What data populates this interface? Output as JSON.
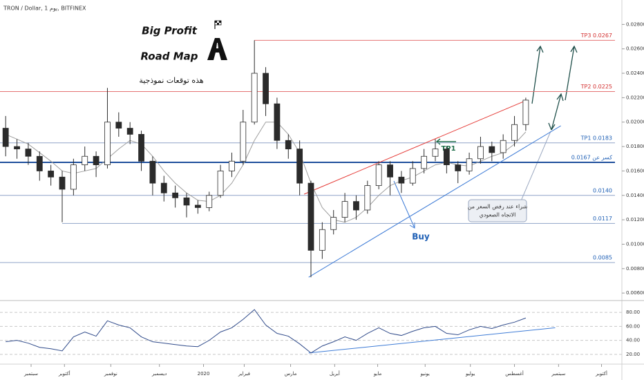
{
  "chart_data": [
    {
      "type": "candlestick",
      "title": "TRON / Dollar, 1 يوم, BITFINEX",
      "xlim": [
        -0.5,
        54.5
      ],
      "ylim": [
        0.0055,
        0.03
      ],
      "yticks": [
        {
          "value": 0.028,
          "label": "0.028000"
        },
        {
          "value": 0.026,
          "label": "0.026000"
        },
        {
          "value": 0.024,
          "label": "0.024000"
        },
        {
          "value": 0.022,
          "label": "0.022000"
        },
        {
          "value": 0.02,
          "label": "0.020000"
        },
        {
          "value": 0.018,
          "label": "0.018000"
        },
        {
          "value": 0.016,
          "label": "0.016000"
        },
        {
          "value": 0.014,
          "label": "0.014000"
        },
        {
          "value": 0.012,
          "label": "0.012000"
        },
        {
          "value": 0.01,
          "label": "0.010000"
        },
        {
          "value": 0.008,
          "label": "0.008000"
        },
        {
          "value": 0.006,
          "label": "0.006000"
        }
      ],
      "up_color": "#ffffff",
      "down_color": "#2b2b2b",
      "wick_color": "#2b2b2b",
      "ma_color": "#9e9e9e",
      "open": [
        0.0195,
        0.018,
        0.0178,
        0.0172,
        0.016,
        0.0155,
        0.0145,
        0.0165,
        0.0172,
        0.0165,
        0.02,
        0.0195,
        0.019,
        0.0168,
        0.015,
        0.0142,
        0.0138,
        0.0132,
        0.013,
        0.014,
        0.016,
        0.0168,
        0.02,
        0.024,
        0.0215,
        0.0185,
        0.0178,
        0.015,
        0.0095,
        0.0112,
        0.0122,
        0.0135,
        0.0128,
        0.0148,
        0.0165,
        0.0155,
        0.015,
        0.0162,
        0.0172,
        0.0178,
        0.0165,
        0.016,
        0.017,
        0.018,
        0.0175,
        0.0185,
        0.0198
      ],
      "high": [
        0.0205,
        0.0186,
        0.0183,
        0.0176,
        0.0165,
        0.016,
        0.017,
        0.018,
        0.0176,
        0.0228,
        0.0208,
        0.02,
        0.0193,
        0.0172,
        0.0156,
        0.0148,
        0.0142,
        0.0136,
        0.0143,
        0.0165,
        0.0175,
        0.021,
        0.0267,
        0.0245,
        0.022,
        0.019,
        0.0185,
        0.0152,
        0.0118,
        0.0128,
        0.0142,
        0.014,
        0.0152,
        0.0168,
        0.0168,
        0.016,
        0.0168,
        0.0178,
        0.0186,
        0.018,
        0.0168,
        0.0175,
        0.0188,
        0.0184,
        0.019,
        0.0205,
        0.022
      ],
      "low": [
        0.0172,
        0.017,
        0.0165,
        0.0152,
        0.0148,
        0.0118,
        0.014,
        0.016,
        0.0155,
        0.0162,
        0.0188,
        0.0182,
        0.016,
        0.014,
        0.0135,
        0.013,
        0.0122,
        0.0125,
        0.0127,
        0.0138,
        0.0155,
        0.0165,
        0.0198,
        0.0205,
        0.0178,
        0.017,
        0.014,
        0.0073,
        0.0088,
        0.0108,
        0.0118,
        0.012,
        0.0125,
        0.0145,
        0.014,
        0.0142,
        0.0148,
        0.0158,
        0.0168,
        0.0158,
        0.015,
        0.0157,
        0.0166,
        0.0168,
        0.017,
        0.018,
        0.0193
      ],
      "close": [
        0.018,
        0.0178,
        0.0172,
        0.016,
        0.0155,
        0.0145,
        0.0165,
        0.0172,
        0.0165,
        0.02,
        0.0195,
        0.019,
        0.0168,
        0.015,
        0.0142,
        0.0138,
        0.0132,
        0.013,
        0.014,
        0.016,
        0.0168,
        0.02,
        0.024,
        0.0215,
        0.0185,
        0.0178,
        0.015,
        0.0095,
        0.0112,
        0.0122,
        0.0135,
        0.0128,
        0.0148,
        0.0165,
        0.0155,
        0.015,
        0.0162,
        0.0172,
        0.0178,
        0.0165,
        0.016,
        0.017,
        0.018,
        0.0175,
        0.0185,
        0.0198,
        0.0218
      ],
      "ma": [
        0.019,
        0.0186,
        0.0182,
        0.0175,
        0.0168,
        0.016,
        0.0158,
        0.016,
        0.0162,
        0.017,
        0.0178,
        0.0185,
        0.0182,
        0.0172,
        0.016,
        0.015,
        0.0142,
        0.0136,
        0.0135,
        0.014,
        0.015,
        0.0165,
        0.0185,
        0.02,
        0.02,
        0.019,
        0.0175,
        0.015,
        0.013,
        0.012,
        0.0118,
        0.0122,
        0.013,
        0.014,
        0.0148,
        0.0152,
        0.0155,
        0.016,
        0.0165,
        0.0167,
        0.0165,
        0.0164,
        0.0168,
        0.0172,
        0.0175,
        0.0182,
        0.0192
      ],
      "levels": [
        {
          "value": 0.0267,
          "label": "TP3 0.0267",
          "color": "#e57373",
          "from": 22,
          "width": 1
        },
        {
          "value": 0.0225,
          "label": "TP2 0.0225",
          "color": "#e57373",
          "from": -0.5,
          "width": 1
        },
        {
          "value": 0.0183,
          "label": "TP1 0.0183",
          "color": "#90a4c8",
          "from": -0.5,
          "width": 1
        },
        {
          "value": 0.0167,
          "label": "كسر عن 0.0167",
          "color": "#1e4f9c",
          "from": -0.5,
          "width": 2
        },
        {
          "value": 0.014,
          "label": "0.0140",
          "color": "#90a4c8",
          "from": -0.5,
          "width": 1
        },
        {
          "value": 0.0117,
          "label": "0.0117",
          "color": "#90a4c8",
          "from": 5,
          "width": 1
        },
        {
          "value": 0.0085,
          "label": "0.0085",
          "color": "#90a4c8",
          "from": -0.5,
          "width": 1
        }
      ],
      "trendlines": [
        {
          "from": [
            26.4,
            0.0141
          ],
          "to": [
            46.1,
            0.0218
          ],
          "color": "#e53935"
        },
        {
          "from": [
            26.8,
            0.0073
          ],
          "to": [
            49.1,
            0.0197
          ],
          "color": "#3d7bd6"
        }
      ],
      "annotations": {
        "headline": "Big Profit",
        "subline": "Road Map",
        "note": "هذه توقعات نموذجية",
        "tp1": "TP1",
        "buy": "Buy",
        "callout": [
          "شراء عند رفض السعر من",
          "الاتجاه الصعودي"
        ]
      }
    },
    {
      "type": "line",
      "color": "#2f4a8a",
      "xlim": [
        -0.5,
        54.5
      ],
      "ylim": [
        8,
        95
      ],
      "xticks": [
        {
          "value": 2.25,
          "label": "سبتمبر"
        },
        {
          "value": 5.2,
          "label": "أكتوبر"
        },
        {
          "value": 9.3,
          "label": "نوفمبر"
        },
        {
          "value": 13.6,
          "label": "ديسمبر"
        },
        {
          "value": 17.5,
          "label": "2020"
        },
        {
          "value": 21.1,
          "label": "فبراير"
        },
        {
          "value": 25.2,
          "label": "مارس"
        },
        {
          "value": 29.1,
          "label": "أبريل"
        },
        {
          "value": 32.9,
          "label": "مايو"
        },
        {
          "value": 37.1,
          "label": "يونيو"
        },
        {
          "value": 41.1,
          "label": "يوليو"
        },
        {
          "value": 45.0,
          "label": "أغسطس"
        },
        {
          "value": 48.9,
          "label": "سبتمبر"
        },
        {
          "value": 52.7,
          "label": "أكتوبر"
        }
      ],
      "yticks": [
        {
          "value": 80,
          "label": "80.00"
        },
        {
          "value": 60,
          "label": "60.00"
        },
        {
          "value": 40,
          "label": "40.00"
        },
        {
          "value": 20,
          "label": "20.00"
        }
      ],
      "values": [
        38,
        40,
        36,
        30,
        28,
        25,
        45,
        52,
        46,
        68,
        62,
        58,
        45,
        38,
        36,
        34,
        32,
        31,
        40,
        52,
        58,
        70,
        84,
        62,
        50,
        46,
        35,
        22,
        32,
        38,
        45,
        40,
        50,
        58,
        50,
        47,
        53,
        58,
        60,
        50,
        48,
        55,
        60,
        57,
        62,
        66,
        72
      ],
      "trendline": {
        "from": [
          26.8,
          22
        ],
        "to": [
          48.6,
          58
        ],
        "color": "#3d7bd6"
      }
    }
  ]
}
